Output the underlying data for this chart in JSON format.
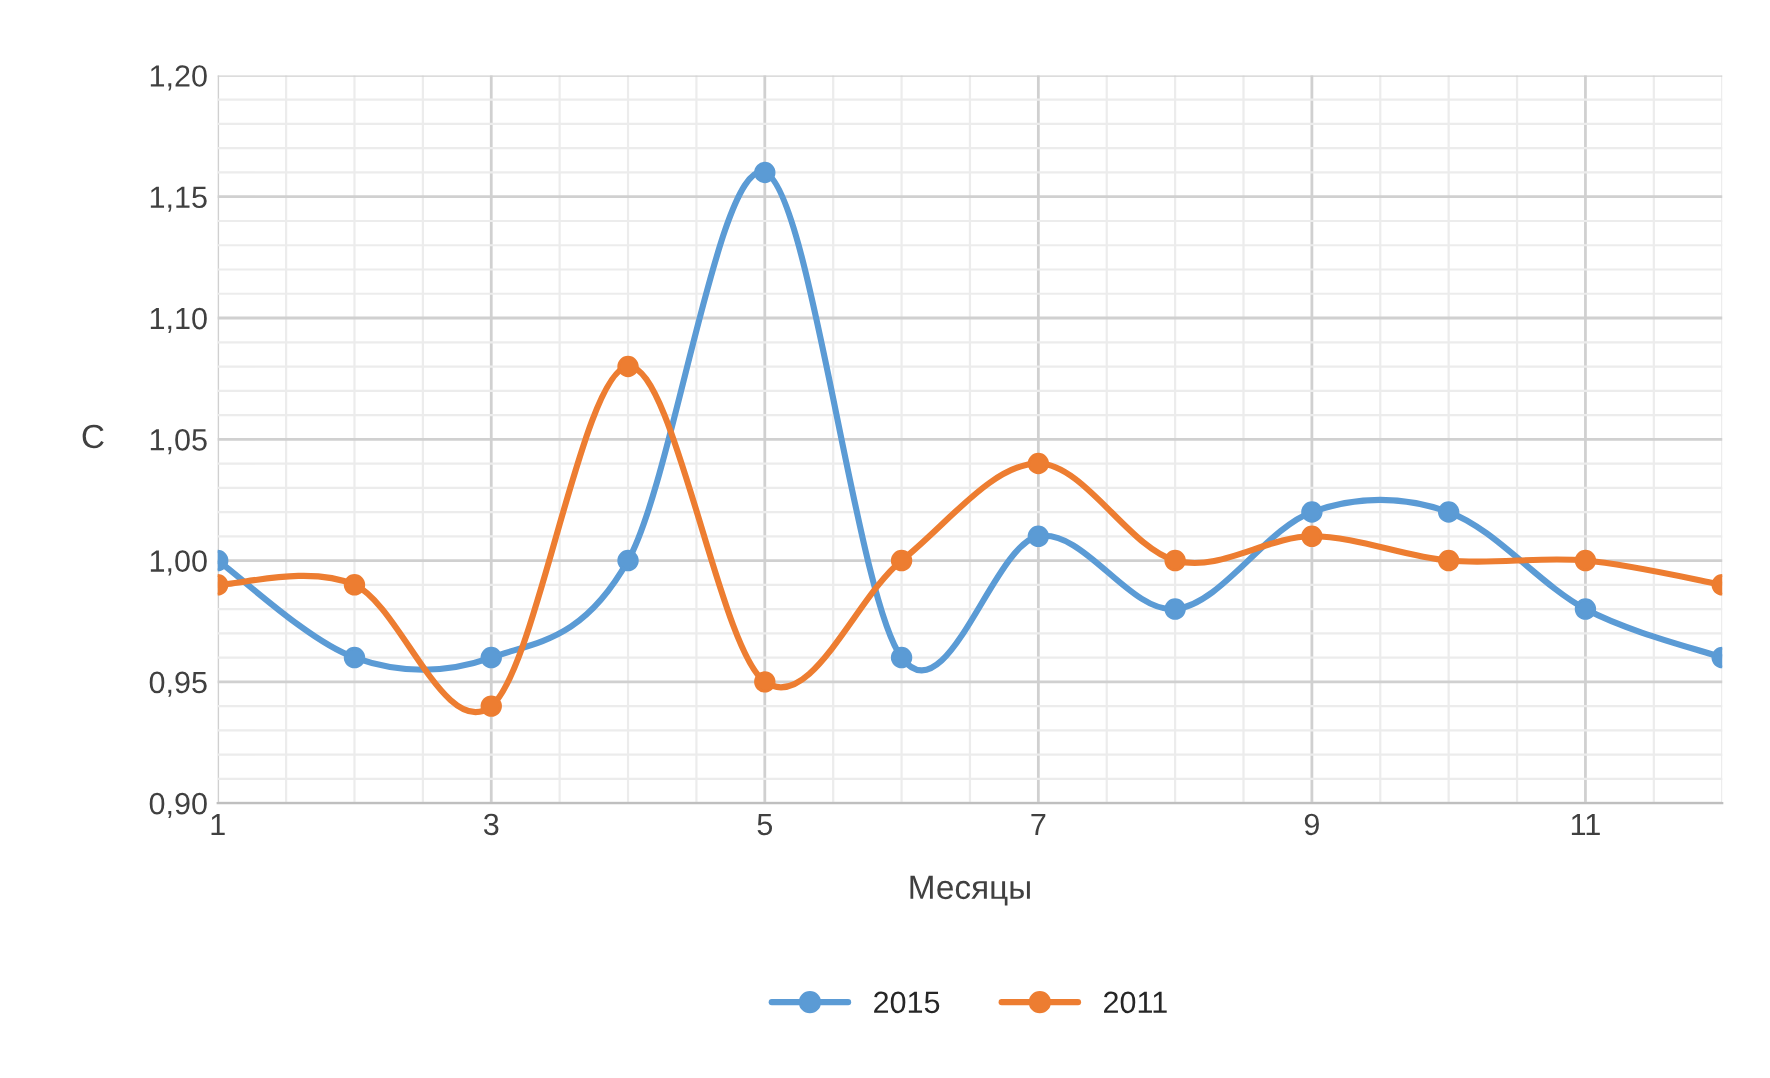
{
  "chart_data": {
    "type": "line",
    "xlabel": "Месяцы",
    "ylabel": "С",
    "x": [
      1,
      2,
      3,
      4,
      5,
      6,
      7,
      8,
      9,
      10,
      11,
      12
    ],
    "series": [
      {
        "name": "2015",
        "color": "#5b9bd5",
        "values": [
          1.0,
          0.96,
          0.96,
          1.0,
          1.16,
          0.96,
          1.01,
          0.98,
          1.02,
          1.02,
          0.98,
          0.96
        ]
      },
      {
        "name": "2011",
        "color": "#ed7d31",
        "values": [
          0.99,
          0.99,
          0.94,
          1.08,
          0.95,
          1.0,
          1.04,
          1.0,
          1.01,
          1.0,
          1.0,
          0.99
        ]
      }
    ],
    "xlim": [
      1,
      12
    ],
    "xticks": [
      1,
      3,
      5,
      7,
      9,
      11
    ],
    "ylim": [
      0.9,
      1.2
    ],
    "yticks": [
      {
        "value": 0.9,
        "label": "0,90"
      },
      {
        "value": 0.95,
        "label": "0,95"
      },
      {
        "value": 1.0,
        "label": "1,00"
      },
      {
        "value": 1.05,
        "label": "1,05"
      },
      {
        "value": 1.1,
        "label": "1,10"
      },
      {
        "value": 1.15,
        "label": "1,15"
      },
      {
        "value": 1.2,
        "label": "1,20"
      }
    ],
    "grid": true,
    "legend": "bottom",
    "marker": "circle",
    "line_style": "solid"
  }
}
